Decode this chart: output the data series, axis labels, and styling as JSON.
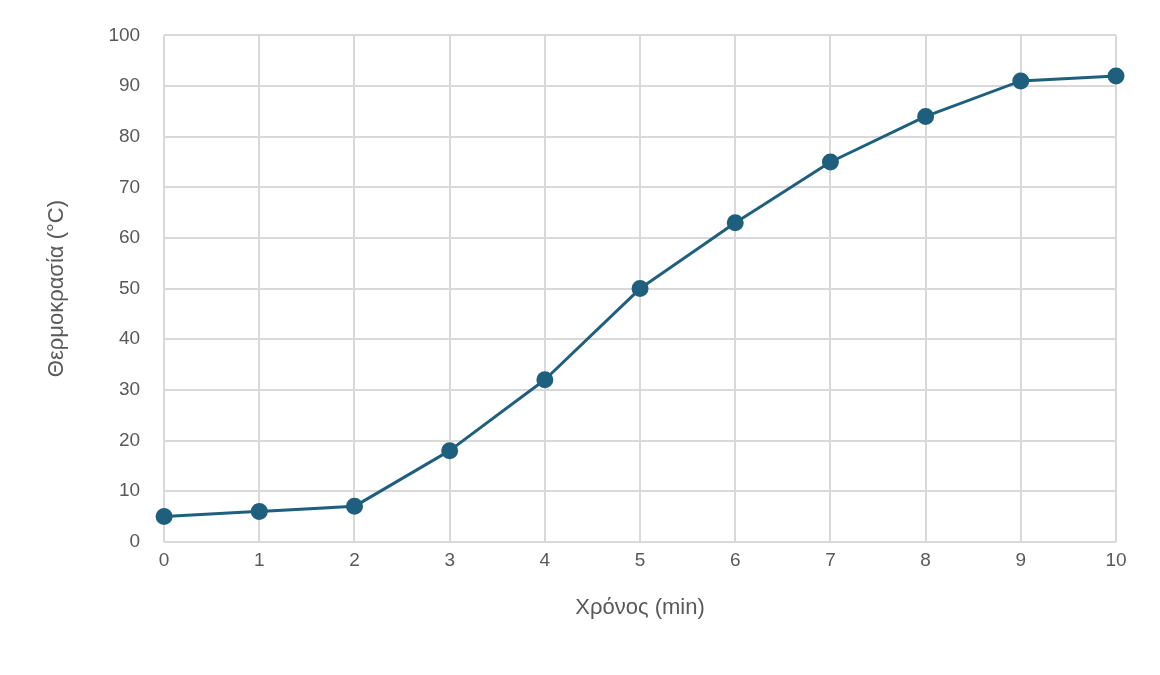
{
  "chart_data": {
    "type": "line",
    "xlabel": "Χρόνος (min)",
    "ylabel": "Θερμοκρασία (°C)",
    "x": [
      0,
      1,
      2,
      3,
      4,
      5,
      6,
      7,
      8,
      9,
      10
    ],
    "series": [
      {
        "color": "#1f5f7e",
        "values": [
          5,
          6,
          7,
          18,
          32,
          50,
          63,
          75,
          84,
          91,
          92
        ]
      }
    ],
    "xlim": [
      0,
      10
    ],
    "xticks": [
      0,
      1,
      2,
      3,
      4,
      5,
      6,
      7,
      8,
      9,
      10
    ],
    "ylim": [
      0,
      100
    ],
    "yticks": [
      0,
      10,
      20,
      30,
      40,
      50,
      60,
      70,
      80,
      90,
      100
    ],
    "grid": true,
    "legend": false,
    "marker": "circle",
    "line_style": "solid"
  }
}
